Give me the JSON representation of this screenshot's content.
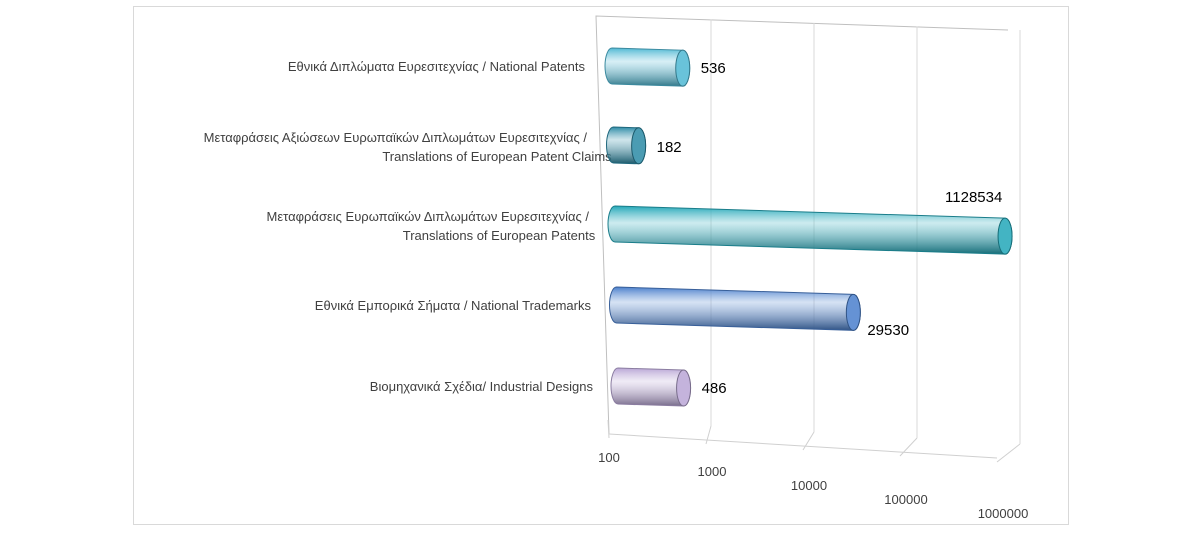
{
  "chart_data": {
    "type": "bar",
    "orientation": "horizontal",
    "style": "3d-cylinder",
    "x_scale": "log",
    "xlim": [
      100,
      1000000
    ],
    "x_ticks": [
      "100",
      "1000",
      "10000",
      "100000",
      "1000000"
    ],
    "grid": true,
    "legend": "none",
    "title": "",
    "xlabel": "",
    "ylabel": "",
    "categories": [
      [
        "Εθνικά Διπλώματα Ευρεσιτεχνίας / National Patents"
      ],
      [
        "Μεταφράσεις Αξιώσεων Ευρωπαϊκών Διπλωμάτων Ευρεσιτεχνίας /",
        "Translations of European Patent Claims"
      ],
      [
        "Μεταφράσεις Ευρωπαϊκών Διπλωμάτων Ευρεσιτεχνίας /",
        "Translations of European Patents"
      ],
      [
        "Εθνικά Εμπορικά Σήματα / National Trademarks"
      ],
      [
        "Βιομηχανικά Σχέδια/ Industrial Designs"
      ]
    ],
    "values": [
      536,
      182,
      1128534,
      29530,
      486
    ],
    "data_labels": [
      "536",
      "182",
      "1128534",
      "29530",
      "486"
    ],
    "colors": [
      "#4fb8d4",
      "#2b8aa6",
      "#22a7b8",
      "#4a7fcc",
      "#b9a6d6"
    ]
  }
}
